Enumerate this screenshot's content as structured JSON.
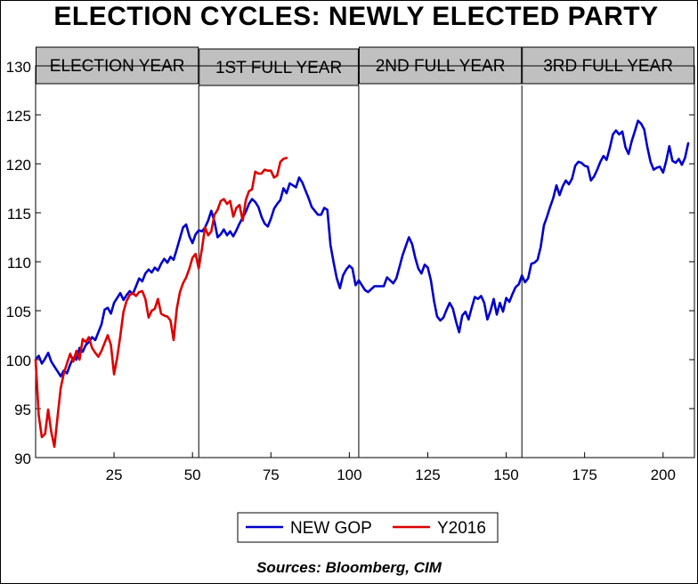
{
  "title": "ELECTION CYCLES: NEWLY ELECTED PARTY",
  "source": "Sources:  Bloomberg, CIM",
  "colors": {
    "new_gop": "#0000cc",
    "y2016": "#dd0000",
    "header_fill": "#c0c0c0"
  },
  "chart_data": {
    "type": "line",
    "title": "ELECTION CYCLES: NEWLY ELECTED PARTY",
    "xlabel": "",
    "ylabel": "",
    "xlim": [
      0,
      210
    ],
    "ylim": [
      90,
      130
    ],
    "xticks": [
      25,
      50,
      75,
      100,
      125,
      150,
      175,
      200
    ],
    "yticks": [
      90,
      95,
      100,
      105,
      110,
      115,
      120,
      125,
      130
    ],
    "grid": false,
    "legend_position": "bottom-center",
    "period_dividers": [
      52,
      103,
      155
    ],
    "period_labels": [
      "ELECTION YEAR",
      "1ST FULL YEAR",
      "2ND FULL YEAR",
      "3RD FULL YEAR"
    ],
    "series": [
      {
        "name": "NEW GOP",
        "color": "#0000cc",
        "points": [
          [
            0,
            100.0
          ],
          [
            1,
            100.4
          ],
          [
            2,
            99.6
          ],
          [
            3,
            100.1
          ],
          [
            4,
            100.7
          ],
          [
            5,
            99.8
          ],
          [
            6,
            99.3
          ],
          [
            7,
            98.8
          ],
          [
            8,
            98.3
          ],
          [
            9,
            98.9
          ],
          [
            10,
            98.6
          ],
          [
            11,
            99.5
          ],
          [
            12,
            100.2
          ],
          [
            13,
            100.0
          ],
          [
            14,
            101.2
          ],
          [
            15,
            100.8
          ],
          [
            16,
            101.5
          ],
          [
            17,
            101.8
          ],
          [
            18,
            102.3
          ],
          [
            19,
            102.0
          ],
          [
            20,
            102.8
          ],
          [
            21,
            103.6
          ],
          [
            22,
            105.1
          ],
          [
            23,
            105.3
          ],
          [
            24,
            104.7
          ],
          [
            25,
            105.8
          ],
          [
            26,
            106.3
          ],
          [
            27,
            106.8
          ],
          [
            28,
            106.1
          ],
          [
            29,
            106.6
          ],
          [
            30,
            107.0
          ],
          [
            31,
            106.7
          ],
          [
            32,
            107.5
          ],
          [
            33,
            108.3
          ],
          [
            34,
            108.0
          ],
          [
            35,
            108.8
          ],
          [
            36,
            109.2
          ],
          [
            37,
            108.9
          ],
          [
            38,
            109.4
          ],
          [
            39,
            109.1
          ],
          [
            40,
            109.8
          ],
          [
            41,
            110.3
          ],
          [
            42,
            109.9
          ],
          [
            43,
            110.5
          ],
          [
            44,
            110.2
          ],
          [
            45,
            111.3
          ],
          [
            46,
            112.4
          ],
          [
            47,
            113.5
          ],
          [
            48,
            113.8
          ],
          [
            49,
            112.6
          ],
          [
            50,
            111.9
          ],
          [
            51,
            112.8
          ],
          [
            52,
            113.2
          ],
          [
            53,
            113.1
          ],
          [
            54,
            113.5
          ],
          [
            55,
            114.2
          ],
          [
            56,
            115.2
          ],
          [
            57,
            114.1
          ],
          [
            58,
            112.5
          ],
          [
            59,
            112.8
          ],
          [
            60,
            113.3
          ],
          [
            61,
            112.7
          ],
          [
            62,
            113.1
          ],
          [
            63,
            112.6
          ],
          [
            64,
            113.2
          ],
          [
            65,
            113.9
          ],
          [
            66,
            114.5
          ],
          [
            67,
            115.1
          ],
          [
            68,
            115.9
          ],
          [
            69,
            116.4
          ],
          [
            70,
            116.1
          ],
          [
            71,
            115.6
          ],
          [
            72,
            114.6
          ],
          [
            73,
            113.9
          ],
          [
            74,
            113.6
          ],
          [
            75,
            114.4
          ],
          [
            76,
            115.4
          ],
          [
            77,
            115.9
          ],
          [
            78,
            116.3
          ],
          [
            79,
            117.5
          ],
          [
            80,
            117.0
          ],
          [
            81,
            118.0
          ],
          [
            82,
            117.8
          ],
          [
            83,
            117.6
          ],
          [
            84,
            118.6
          ],
          [
            85,
            118.1
          ],
          [
            86,
            117.3
          ],
          [
            87,
            116.5
          ],
          [
            88,
            115.6
          ],
          [
            89,
            115.2
          ],
          [
            90,
            114.8
          ],
          [
            91,
            114.8
          ],
          [
            92,
            115.5
          ],
          [
            93,
            115.3
          ],
          [
            94,
            111.7
          ],
          [
            95,
            109.9
          ],
          [
            96,
            108.3
          ],
          [
            97,
            107.3
          ],
          [
            98,
            108.6
          ],
          [
            99,
            109.2
          ],
          [
            100,
            109.6
          ],
          [
            101,
            109.3
          ],
          [
            102,
            107.6
          ],
          [
            103,
            108.1
          ],
          [
            104,
            107.6
          ],
          [
            105,
            107.1
          ],
          [
            106,
            106.9
          ],
          [
            107,
            107.2
          ],
          [
            108,
            107.5
          ],
          [
            109,
            107.5
          ],
          [
            110,
            107.5
          ],
          [
            111,
            107.5
          ],
          [
            112,
            108.4
          ],
          [
            113,
            108.1
          ],
          [
            114,
            107.8
          ],
          [
            115,
            108.3
          ],
          [
            116,
            109.5
          ],
          [
            117,
            110.7
          ],
          [
            118,
            111.6
          ],
          [
            119,
            112.5
          ],
          [
            120,
            111.8
          ],
          [
            121,
            110.4
          ],
          [
            122,
            109.3
          ],
          [
            123,
            108.8
          ],
          [
            124,
            109.7
          ],
          [
            125,
            109.4
          ],
          [
            126,
            108.1
          ],
          [
            127,
            106.0
          ],
          [
            128,
            104.4
          ],
          [
            129,
            104.0
          ],
          [
            130,
            104.3
          ],
          [
            131,
            105.1
          ],
          [
            132,
            105.8
          ],
          [
            133,
            105.2
          ],
          [
            134,
            103.9
          ],
          [
            135,
            102.8
          ],
          [
            136,
            104.5
          ],
          [
            137,
            104.9
          ],
          [
            138,
            104.1
          ],
          [
            139,
            105.3
          ],
          [
            140,
            106.4
          ],
          [
            141,
            106.2
          ],
          [
            142,
            106.5
          ],
          [
            143,
            105.8
          ],
          [
            144,
            104.1
          ],
          [
            145,
            105.0
          ],
          [
            146,
            106.2
          ],
          [
            147,
            104.6
          ],
          [
            148,
            105.8
          ],
          [
            149,
            104.9
          ],
          [
            150,
            106.3
          ],
          [
            151,
            105.9
          ],
          [
            152,
            106.7
          ],
          [
            153,
            107.4
          ],
          [
            154,
            107.7
          ],
          [
            155,
            108.6
          ],
          [
            156,
            107.9
          ],
          [
            157,
            108.3
          ],
          [
            158,
            109.8
          ],
          [
            159,
            109.9
          ],
          [
            160,
            110.2
          ],
          [
            161,
            111.5
          ],
          [
            162,
            113.7
          ],
          [
            163,
            114.6
          ],
          [
            164,
            115.6
          ],
          [
            165,
            116.5
          ],
          [
            166,
            117.8
          ],
          [
            167,
            116.8
          ],
          [
            168,
            117.7
          ],
          [
            169,
            118.3
          ],
          [
            170,
            117.9
          ],
          [
            171,
            118.5
          ],
          [
            172,
            119.8
          ],
          [
            173,
            120.2
          ],
          [
            174,
            120.1
          ],
          [
            175,
            119.8
          ],
          [
            176,
            119.7
          ],
          [
            177,
            118.3
          ],
          [
            178,
            118.7
          ],
          [
            179,
            119.4
          ],
          [
            180,
            120.2
          ],
          [
            181,
            120.8
          ],
          [
            182,
            120.4
          ],
          [
            183,
            121.6
          ],
          [
            184,
            123.0
          ],
          [
            185,
            123.4
          ],
          [
            186,
            123.0
          ],
          [
            187,
            123.3
          ],
          [
            188,
            121.7
          ],
          [
            189,
            121.0
          ],
          [
            190,
            122.3
          ],
          [
            191,
            123.3
          ],
          [
            192,
            124.4
          ],
          [
            193,
            124.1
          ],
          [
            194,
            123.5
          ],
          [
            195,
            121.7
          ],
          [
            196,
            120.2
          ],
          [
            197,
            119.4
          ],
          [
            198,
            119.6
          ],
          [
            199,
            119.7
          ],
          [
            200,
            119.1
          ],
          [
            201,
            120.3
          ],
          [
            202,
            121.8
          ],
          [
            203,
            120.3
          ],
          [
            204,
            120.1
          ],
          [
            205,
            120.5
          ],
          [
            206,
            119.9
          ],
          [
            207,
            120.6
          ],
          [
            208,
            122.1
          ]
        ]
      },
      {
        "name": "Y2016",
        "color": "#dd0000",
        "points": [
          [
            0,
            100.0
          ],
          [
            1,
            94.3
          ],
          [
            2,
            92.1
          ],
          [
            3,
            92.4
          ],
          [
            4,
            94.9
          ],
          [
            5,
            92.6
          ],
          [
            6,
            91.1
          ],
          [
            7,
            94.2
          ],
          [
            8,
            97.1
          ],
          [
            9,
            98.6
          ],
          [
            10,
            99.6
          ],
          [
            11,
            100.6
          ],
          [
            12,
            99.8
          ],
          [
            13,
            100.9
          ],
          [
            14,
            100.0
          ],
          [
            15,
            102.1
          ],
          [
            16,
            101.8
          ],
          [
            17,
            102.3
          ],
          [
            18,
            101.2
          ],
          [
            19,
            100.7
          ],
          [
            20,
            100.3
          ],
          [
            21,
            100.9
          ],
          [
            22,
            101.7
          ],
          [
            23,
            102.5
          ],
          [
            24,
            101.5
          ],
          [
            25,
            98.5
          ],
          [
            26,
            100.2
          ],
          [
            27,
            102.4
          ],
          [
            28,
            104.9
          ],
          [
            29,
            106.0
          ],
          [
            30,
            106.6
          ],
          [
            31,
            106.8
          ],
          [
            32,
            106.5
          ],
          [
            33,
            106.9
          ],
          [
            34,
            107.0
          ],
          [
            35,
            106.2
          ],
          [
            36,
            104.3
          ],
          [
            37,
            105.0
          ],
          [
            38,
            105.2
          ],
          [
            39,
            106.2
          ],
          [
            40,
            104.7
          ],
          [
            41,
            104.5
          ],
          [
            42,
            104.4
          ],
          [
            43,
            104.0
          ],
          [
            44,
            102.0
          ],
          [
            45,
            105.2
          ],
          [
            46,
            106.9
          ],
          [
            47,
            107.8
          ],
          [
            48,
            108.4
          ],
          [
            49,
            109.3
          ],
          [
            50,
            110.4
          ],
          [
            51,
            110.8
          ],
          [
            52,
            109.3
          ],
          [
            53,
            111.3
          ],
          [
            54,
            113.5
          ],
          [
            55,
            112.7
          ],
          [
            56,
            113.1
          ],
          [
            57,
            114.8
          ],
          [
            58,
            115.3
          ],
          [
            59,
            116.2
          ],
          [
            60,
            116.4
          ],
          [
            61,
            115.9
          ],
          [
            62,
            116.2
          ],
          [
            63,
            114.6
          ],
          [
            64,
            115.5
          ],
          [
            65,
            115.8
          ],
          [
            66,
            114.2
          ],
          [
            67,
            116.3
          ],
          [
            68,
            117.2
          ],
          [
            69,
            117.4
          ],
          [
            70,
            119.2
          ],
          [
            71,
            119.0
          ],
          [
            72,
            119.0
          ],
          [
            73,
            119.4
          ],
          [
            74,
            119.3
          ],
          [
            75,
            119.3
          ],
          [
            76,
            118.6
          ],
          [
            77,
            118.8
          ],
          [
            78,
            120.2
          ],
          [
            79,
            120.5
          ],
          [
            80,
            120.6
          ]
        ]
      }
    ]
  }
}
